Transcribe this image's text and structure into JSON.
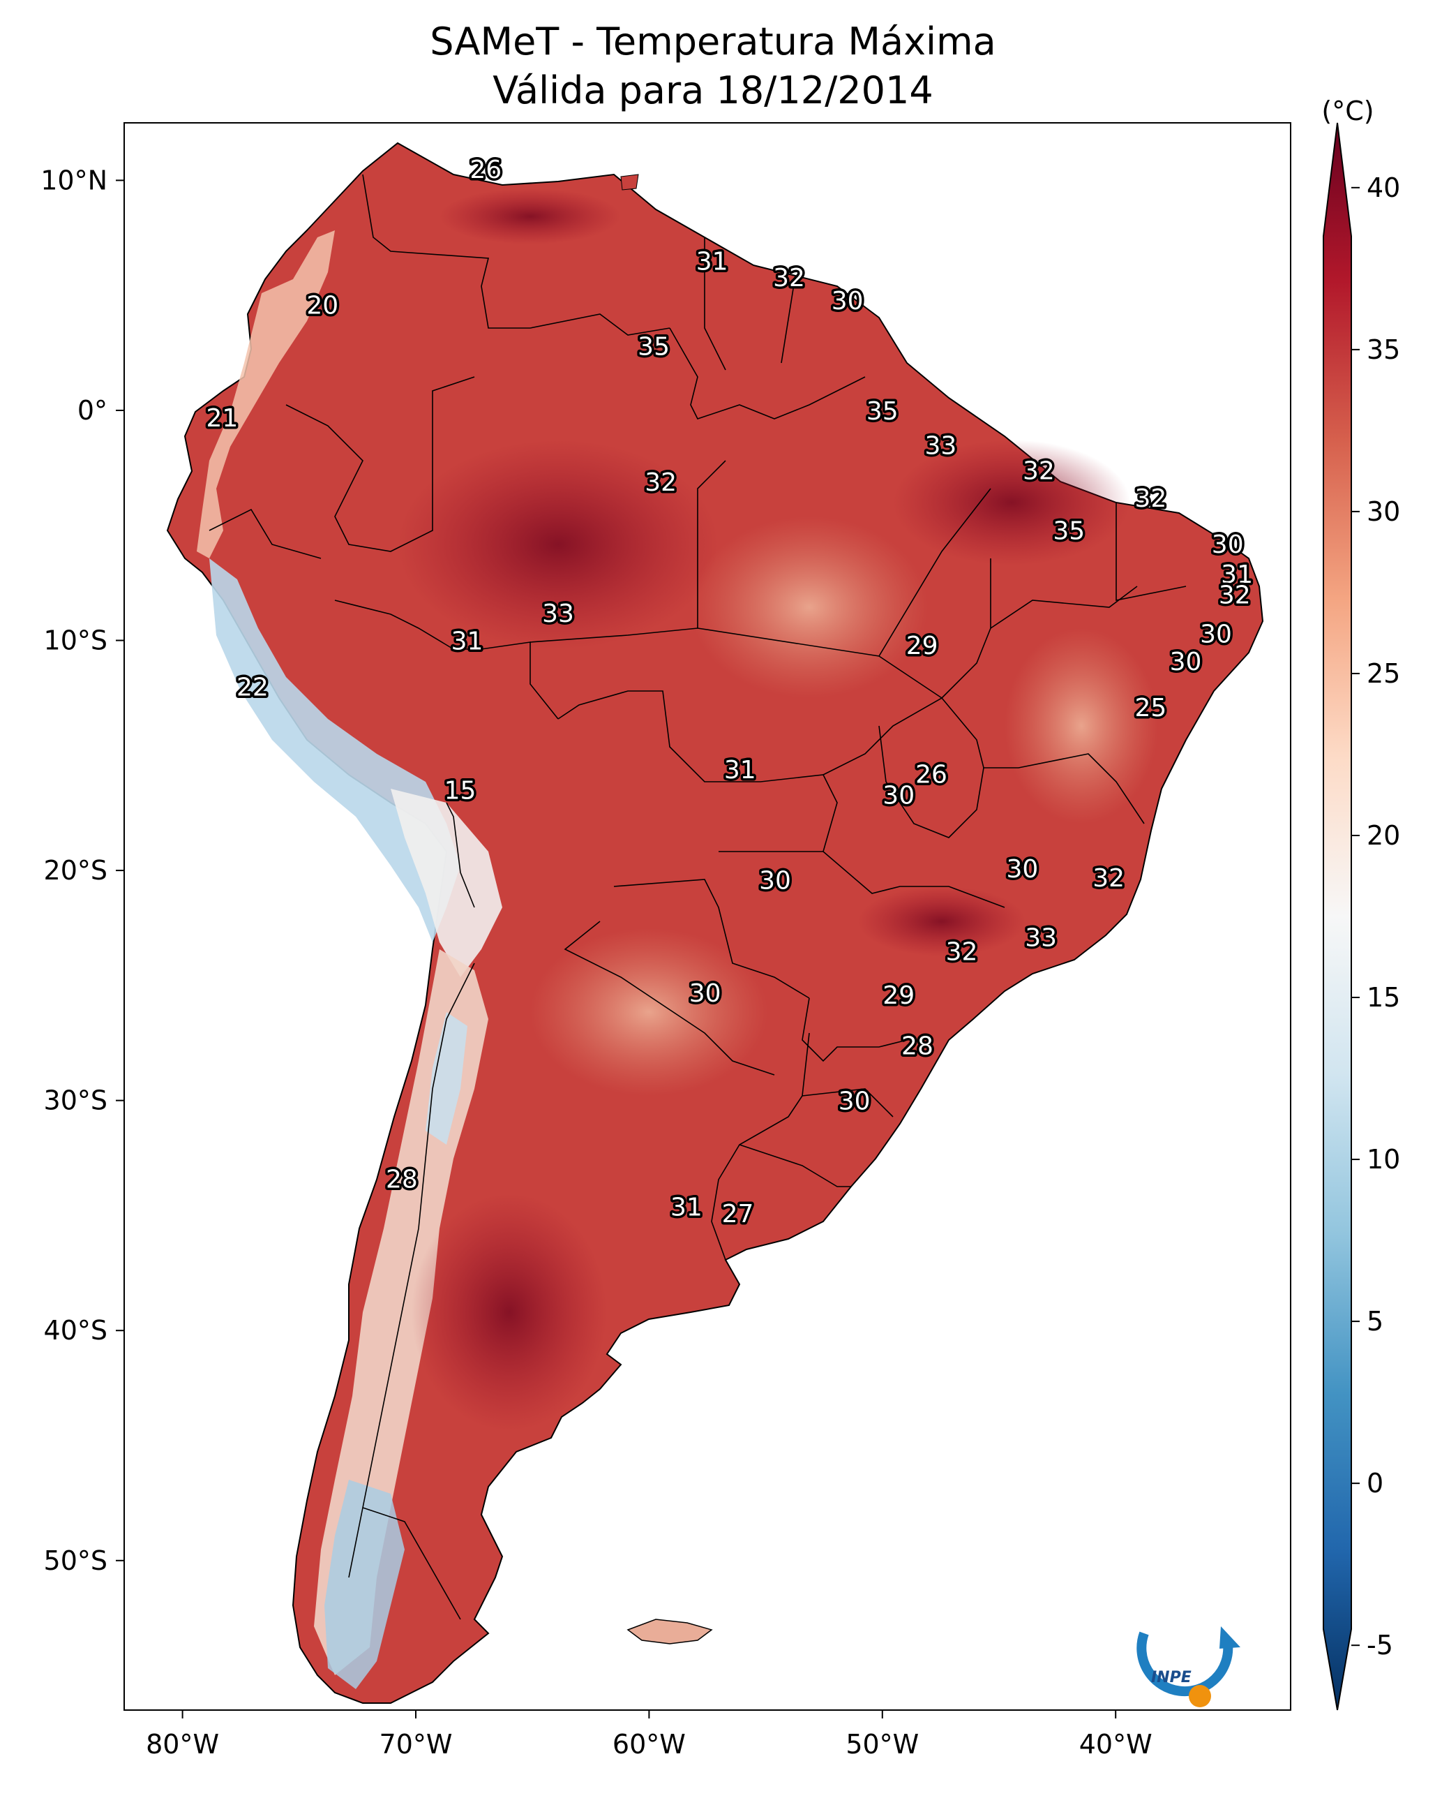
{
  "title_line1": "SAMeT - Temperatura Máxima",
  "title_line2": "Válida para 18/12/2014",
  "map": {
    "lon_range": [
      -82.5,
      -32.5
    ],
    "lat_range": [
      -56.5,
      12.5
    ],
    "x_ticks": [
      {
        "lon": -80,
        "label": "80°W"
      },
      {
        "lon": -70,
        "label": "70°W"
      },
      {
        "lon": -60,
        "label": "60°W"
      },
      {
        "lon": -50,
        "label": "50°W"
      },
      {
        "lon": -40,
        "label": "40°W"
      }
    ],
    "y_ticks": [
      {
        "lat": 10,
        "label": "10°N"
      },
      {
        "lat": 0,
        "label": "0°"
      },
      {
        "lat": -10,
        "label": "10°S"
      },
      {
        "lat": -20,
        "label": "20°S"
      },
      {
        "lat": -30,
        "label": "30°S"
      },
      {
        "lat": -40,
        "label": "40°S"
      },
      {
        "lat": -50,
        "label": "50°S"
      }
    ]
  },
  "colorbar": {
    "unit_label": "(°C)",
    "min": -7,
    "max": 42,
    "ticks": [
      {
        "value": 40,
        "label": "40"
      },
      {
        "value": 35,
        "label": "35"
      },
      {
        "value": 30,
        "label": "30"
      },
      {
        "value": 25,
        "label": "25"
      },
      {
        "value": 20,
        "label": "20"
      },
      {
        "value": 15,
        "label": "15"
      },
      {
        "value": 10,
        "label": "10"
      },
      {
        "value": 5,
        "label": "5"
      },
      {
        "value": 0,
        "label": "0"
      },
      {
        "value": -5,
        "label": "-5"
      }
    ],
    "colors": [
      "#053061",
      "#2166ac",
      "#4393c3",
      "#92c5de",
      "#d1e5f0",
      "#f7f7f7",
      "#fddbc7",
      "#f4a582",
      "#d6604d",
      "#b2182b",
      "#67001f"
    ]
  },
  "logo_text": "INPE",
  "chart_data": {
    "type": "map",
    "variable": "Temperatura Máxima (°C)",
    "city_values": [
      {
        "lon": -67.0,
        "lat": 10.5,
        "label": "26"
      },
      {
        "lon": -57.3,
        "lat": 6.5,
        "label": "31"
      },
      {
        "lon": -54.0,
        "lat": 5.8,
        "label": "32"
      },
      {
        "lon": -51.5,
        "lat": 4.8,
        "label": "30"
      },
      {
        "lon": -74.0,
        "lat": 4.6,
        "label": "20"
      },
      {
        "lon": -59.8,
        "lat": 2.8,
        "label": "35"
      },
      {
        "lon": -78.3,
        "lat": -0.3,
        "label": "21"
      },
      {
        "lon": -50.0,
        "lat": 0.0,
        "label": "35"
      },
      {
        "lon": -47.5,
        "lat": -1.5,
        "label": "33"
      },
      {
        "lon": -59.5,
        "lat": -3.1,
        "label": "32"
      },
      {
        "lon": -43.3,
        "lat": -2.6,
        "label": "32"
      },
      {
        "lon": -38.5,
        "lat": -3.8,
        "label": "32"
      },
      {
        "lon": -42.0,
        "lat": -5.2,
        "label": "35"
      },
      {
        "lon": -35.2,
        "lat": -5.8,
        "label": "30"
      },
      {
        "lon": -34.8,
        "lat": -7.1,
        "label": "31"
      },
      {
        "lon": -34.9,
        "lat": -8.0,
        "label": "32"
      },
      {
        "lon": -63.9,
        "lat": -8.8,
        "label": "33"
      },
      {
        "lon": -67.8,
        "lat": -10.0,
        "label": "31"
      },
      {
        "lon": -35.7,
        "lat": -9.7,
        "label": "30"
      },
      {
        "lon": -48.3,
        "lat": -10.2,
        "label": "29"
      },
      {
        "lon": -37.0,
        "lat": -10.9,
        "label": "30"
      },
      {
        "lon": -77.0,
        "lat": -12.0,
        "label": "22"
      },
      {
        "lon": -38.5,
        "lat": -12.9,
        "label": "25"
      },
      {
        "lon": -56.1,
        "lat": -15.6,
        "label": "31"
      },
      {
        "lon": -47.9,
        "lat": -15.8,
        "label": "26"
      },
      {
        "lon": -49.3,
        "lat": -16.7,
        "label": "30"
      },
      {
        "lon": -68.1,
        "lat": -16.5,
        "label": "15"
      },
      {
        "lon": -54.6,
        "lat": -20.4,
        "label": "30"
      },
      {
        "lon": -44.0,
        "lat": -19.9,
        "label": "30"
      },
      {
        "lon": -40.3,
        "lat": -20.3,
        "label": "32"
      },
      {
        "lon": -43.2,
        "lat": -22.9,
        "label": "33"
      },
      {
        "lon": -46.6,
        "lat": -23.5,
        "label": "32"
      },
      {
        "lon": -57.6,
        "lat": -25.3,
        "label": "30"
      },
      {
        "lon": -49.3,
        "lat": -25.4,
        "label": "29"
      },
      {
        "lon": -48.5,
        "lat": -27.6,
        "label": "28"
      },
      {
        "lon": -51.2,
        "lat": -30.0,
        "label": "30"
      },
      {
        "lon": -70.6,
        "lat": -33.4,
        "label": "28"
      },
      {
        "lon": -58.4,
        "lat": -34.6,
        "label": "31"
      },
      {
        "lon": -56.2,
        "lat": -34.9,
        "label": "27"
      }
    ]
  }
}
